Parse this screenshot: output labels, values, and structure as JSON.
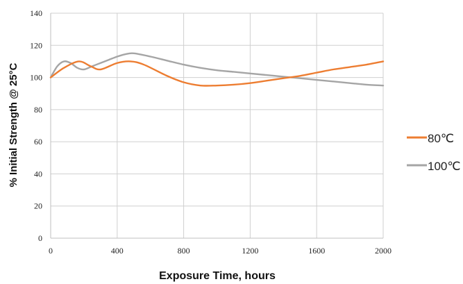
{
  "chart_data": {
    "type": "line",
    "xlabel": "Exposure Time, hours",
    "ylabel": "% Initial Strength @ 25°C",
    "xlim": [
      0,
      2000
    ],
    "ylim": [
      0,
      140
    ],
    "x_ticks": [
      0,
      400,
      800,
      1200,
      1600,
      2000
    ],
    "y_ticks": [
      0,
      20,
      40,
      60,
      80,
      100,
      120,
      140
    ],
    "grid": true,
    "legend_position": "right",
    "series": [
      {
        "name": "80℃",
        "color": "#ED7D31",
        "x": [
          0,
          80,
          170,
          240,
          300,
          400,
          480,
          560,
          700,
          800,
          900,
          1000,
          1100,
          1200,
          1300,
          1400,
          1500,
          1600,
          1700,
          1800,
          1900,
          2000
        ],
        "y": [
          100,
          106,
          110,
          107,
          105,
          109,
          110,
          108,
          101,
          97,
          95,
          95,
          95.5,
          96.5,
          98,
          99.5,
          101,
          103,
          105,
          106.5,
          108,
          110
        ]
      },
      {
        "name": "100℃",
        "color": "#A5A5A5",
        "x": [
          0,
          40,
          80,
          120,
          160,
          200,
          250,
          300,
          350,
          400,
          450,
          500,
          600,
          700,
          800,
          900,
          1000,
          1100,
          1200,
          1300,
          1400,
          1500,
          1600,
          1700,
          1800,
          1900,
          2000
        ],
        "y": [
          100,
          107,
          110,
          109,
          106,
          105,
          107,
          109,
          111,
          113,
          114.5,
          115,
          113,
          110.5,
          108,
          106,
          104.5,
          103.5,
          102.5,
          101.5,
          100.5,
          99.5,
          98.5,
          97.5,
          96.5,
          95.5,
          95
        ]
      }
    ]
  }
}
